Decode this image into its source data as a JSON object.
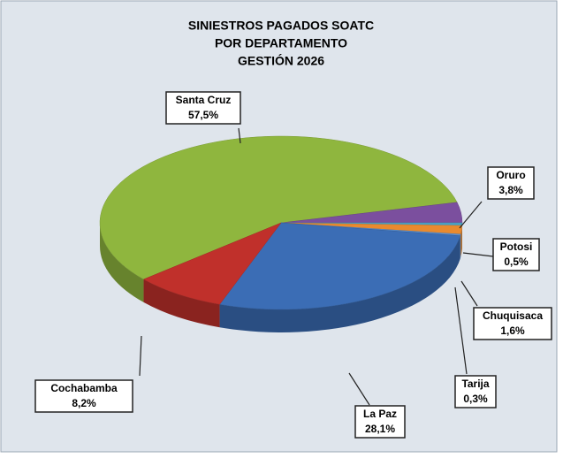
{
  "chart_data": {
    "type": "pie",
    "title": [
      "SINIESTROS PAGADOS SOATC",
      "POR DEPARTAMENTO",
      "GESTIÓN 2026"
    ],
    "categories": [
      "Santa Cruz",
      "Oruro",
      "Potosi",
      "Chuquisaca",
      "Tarija",
      "La Paz",
      "Cochabamba"
    ],
    "values": [
      57.5,
      3.8,
      0.5,
      1.6,
      0.3,
      28.1,
      8.2
    ],
    "value_labels": [
      "57,5%",
      "3,8%",
      "0,5%",
      "1,6%",
      "0,3%",
      "28,1%",
      "8,2%"
    ],
    "colors": [
      "#8fb63e",
      "#7b4f9e",
      "#4aa3c8",
      "#e98a2e",
      "#5a8fd0",
      "#3b6db5",
      "#c0302b"
    ]
  }
}
